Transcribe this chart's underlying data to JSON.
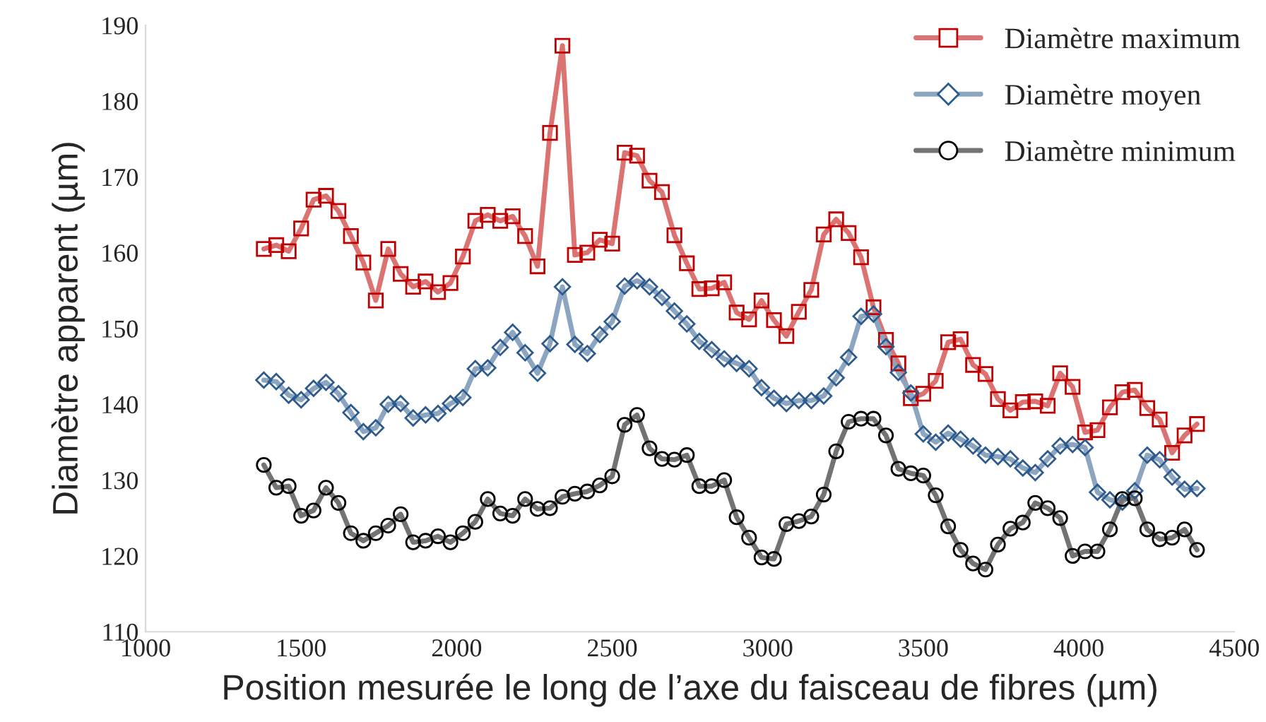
{
  "chart_data": {
    "type": "line",
    "xlabel": "Position mesurée le long de l’axe du faisceau de fibres (µm)",
    "ylabel": "Diamètre apparent (µm)",
    "x": [
      1380,
      1420,
      1460,
      1500,
      1540,
      1580,
      1620,
      1660,
      1700,
      1740,
      1780,
      1820,
      1860,
      1900,
      1940,
      1980,
      2020,
      2060,
      2100,
      2140,
      2180,
      2220,
      2260,
      2300,
      2340,
      2380,
      2420,
      2460,
      2500,
      2540,
      2580,
      2620,
      2660,
      2700,
      2740,
      2780,
      2820,
      2860,
      2900,
      2940,
      2980,
      3020,
      3060,
      3100,
      3140,
      3180,
      3220,
      3260,
      3300,
      3340,
      3380,
      3420,
      3460,
      3500,
      3540,
      3580,
      3620,
      3660,
      3700,
      3740,
      3780,
      3820,
      3860,
      3900,
      3940,
      3980,
      4020,
      4060,
      4100,
      4140,
      4180,
      4220,
      4260,
      4300,
      4340,
      4380
    ],
    "series": [
      {
        "name": "Diamètre maximum",
        "color": "#c00000",
        "marker": "square",
        "values": [
          160.5,
          161,
          160.2,
          163.2,
          167,
          167.5,
          165.5,
          162.2,
          158.7,
          153.7,
          160.5,
          157.2,
          155.5,
          156.2,
          154.8,
          156,
          159.5,
          164.2,
          165,
          164.2,
          164.8,
          162.2,
          158.2,
          175.8,
          187.3,
          159.7,
          160,
          161.7,
          161.2,
          173.2,
          172.8,
          169.5,
          168,
          162.3,
          158.6,
          155.2,
          155.3,
          156.1,
          152.1,
          151.2,
          153.7,
          151.1,
          149,
          152.2,
          155.1,
          162.4,
          164.4,
          162.6,
          159.4,
          152.8,
          148.5,
          145.4,
          140.8,
          141.4,
          143.1,
          148.2,
          148.6,
          145.2,
          144,
          140.7,
          139.2,
          140.3,
          140.4,
          139.8,
          144.1,
          142.3,
          136.3,
          136.6,
          139.6,
          141.6,
          141.9,
          139.5,
          138,
          133.6,
          135.9,
          137.4
        ]
      },
      {
        "name": "Diamètre moyen",
        "color": "#2e5b8e",
        "marker": "diamond",
        "values": [
          143.2,
          143,
          141.2,
          140.6,
          142.1,
          142.9,
          141.4,
          138.9,
          136.4,
          136.9,
          140,
          140.1,
          138.2,
          138.6,
          138.8,
          140.1,
          140.9,
          144.7,
          144.8,
          147.5,
          149.5,
          146.8,
          144.1,
          148,
          155.5,
          147.9,
          146.7,
          149.2,
          150.9,
          155.6,
          156.3,
          155.5,
          154.1,
          152.3,
          150.6,
          148.3,
          147.2,
          146,
          145.4,
          144.7,
          142.2,
          140.8,
          140.1,
          140.5,
          140.5,
          141.1,
          143.5,
          146.2,
          151.6,
          151.9,
          147.6,
          144.2,
          141.5,
          136.1,
          135,
          136.2,
          135.4,
          134.5,
          133.3,
          133.1,
          132.8,
          131.6,
          131,
          132.8,
          134.5,
          134.7,
          134.3,
          128.4,
          127.4,
          127.1,
          128.6,
          133.3,
          132.7,
          130.4,
          128.8,
          128.9
        ]
      },
      {
        "name": "Diamètre minimum",
        "color": "#000000",
        "marker": "circle",
        "values": [
          132,
          129,
          129.2,
          125.3,
          126,
          129,
          127,
          123,
          122,
          123,
          124,
          125.5,
          121.8,
          122,
          122.6,
          121.8,
          123,
          124.5,
          127.5,
          125.6,
          125.3,
          127.5,
          126.2,
          126.3,
          127.8,
          128.2,
          128.5,
          129.3,
          130.5,
          137.3,
          138.6,
          134.2,
          132.8,
          132.7,
          133.3,
          129.2,
          129.2,
          130,
          125.1,
          122.4,
          119.8,
          119.6,
          124.2,
          124.6,
          125.2,
          128.1,
          133.8,
          137.7,
          138.1,
          138.1,
          135.9,
          131.5,
          130.9,
          130.6,
          128,
          123.9,
          120.8,
          119,
          118.2,
          121.5,
          123.6,
          124.4,
          127,
          126.3,
          125,
          120,
          120.6,
          120.6,
          123.5,
          127.5,
          127.6,
          123.5,
          122.2,
          122.4,
          123.5,
          120.8
        ]
      }
    ],
    "xlim": [
      1000,
      4500
    ],
    "xticks": [
      1000,
      1500,
      2000,
      2500,
      3000,
      3500,
      4000,
      4500
    ],
    "ylim": [
      110,
      190
    ],
    "yticks": [
      110,
      120,
      130,
      140,
      150,
      160,
      170,
      180,
      190
    ],
    "grid": false,
    "legend": "top right",
    "line_style": "solid"
  }
}
